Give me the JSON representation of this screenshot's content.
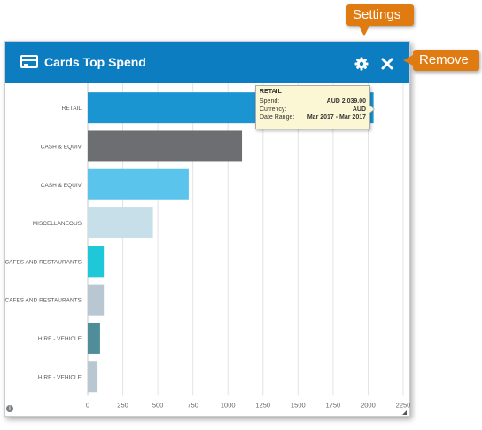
{
  "widget": {
    "title": "Cards Top Spend",
    "header_color": "#0d7dc1",
    "icons": {
      "card": "credit-card-icon",
      "settings": "gear-icon",
      "remove": "close-icon"
    }
  },
  "callouts": {
    "settings": "Settings",
    "remove": "Remove",
    "color": "#e07b12"
  },
  "tooltip": {
    "title": "RETAIL",
    "rows": [
      {
        "label": "Spend:",
        "value": "AUD 2,039.00"
      },
      {
        "label": "Currency:",
        "value": "AUD"
      },
      {
        "label": "Date Range:",
        "value": "Mar 2017 - Mar 2017"
      }
    ]
  },
  "chart_data": {
    "type": "bar",
    "orientation": "horizontal",
    "categories": [
      "RETAIL",
      "CASH & EQUIV",
      "CASH & EQUIV",
      "MISCELLANEOUS",
      "CAFES AND RESTAURANTS",
      "CAFES AND RESTAURANTS",
      "HIRE - VEHICLE",
      "HIRE - VEHICLE"
    ],
    "values": [
      2039,
      1100,
      720,
      465,
      115,
      115,
      88,
      70
    ],
    "colors": [
      "#1b94d2",
      "#6d6e71",
      "#5ac4ec",
      "#c7dfe9",
      "#1fc8d8",
      "#b8c7d1",
      "#4f8e99",
      "#b8c7d1"
    ],
    "xticks": [
      "0",
      "250",
      "500",
      "750",
      "1000",
      "1250",
      "1500",
      "1750",
      "2000",
      "2250"
    ],
    "xlim": [
      0,
      2250
    ],
    "grid": true
  }
}
